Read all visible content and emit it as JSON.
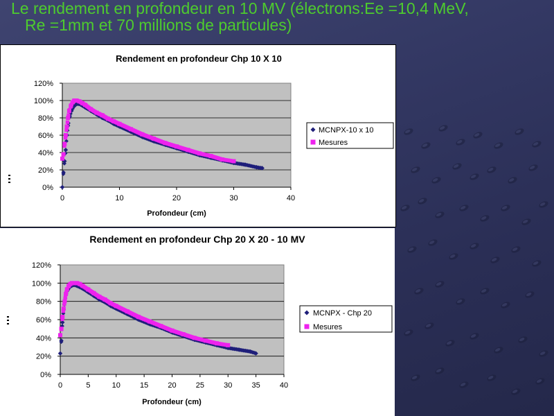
{
  "slide": {
    "title_line1": "Le rendement en profondeur  en 10 MV (électrons:Ee =10,4 MeV,",
    "title_line2": "Re =1mm et 70 millions de particules)",
    "accent_color": "#4ecb2e"
  },
  "chart_data": [
    {
      "type": "scatter",
      "title": "Rendement en profondeur Chp 10 X 10",
      "xlabel": "Profondeur (cm)",
      "ylabel": "",
      "xlim": [
        0,
        40
      ],
      "ylim": [
        0,
        120
      ],
      "xticks": [
        0,
        10,
        20,
        30,
        40
      ],
      "yticks": [
        0,
        20,
        40,
        60,
        80,
        100,
        120
      ],
      "xtick_labels": [
        "0",
        "10",
        "20",
        "30",
        "40"
      ],
      "ytick_labels": [
        "0%",
        "20%",
        "40%",
        "60%",
        "80%",
        "100%",
        "120%"
      ],
      "grid": "horizontal",
      "legend": "right",
      "plot_bg": "#c0c0c0",
      "series": [
        {
          "name": "MCNPX-10 x  10",
          "color": "#1f1f7a",
          "marker": "diamond",
          "x": [
            0,
            0.2,
            0.4,
            0.6,
            0.8,
            1.0,
            1.3,
            1.6,
            2.0,
            2.5,
            3.0,
            4,
            5,
            6,
            7,
            8,
            9,
            10,
            12,
            14,
            16,
            18,
            20,
            22,
            24,
            26,
            28,
            30,
            32,
            34,
            35
          ],
          "y": [
            0,
            17,
            30,
            43,
            60,
            71,
            82,
            88,
            93,
            96,
            96,
            92,
            88,
            84,
            80,
            77,
            73,
            70,
            64,
            58,
            53,
            49,
            45,
            41,
            37,
            34,
            31,
            28,
            26,
            23,
            22
          ]
        },
        {
          "name": "Mesures",
          "color": "#ee22ee",
          "marker": "square",
          "x": [
            0,
            0.2,
            0.4,
            0.6,
            0.8,
            1.0,
            1.2,
            1.5,
            1.8,
            2.1,
            2.5,
            3.0,
            3.5,
            4,
            5,
            6,
            7,
            8,
            9,
            10,
            12,
            14,
            16,
            18,
            20,
            22,
            24,
            26,
            28,
            30
          ],
          "y": [
            33,
            38,
            50,
            60,
            70,
            80,
            88,
            94,
            98,
            100,
            100,
            99,
            97,
            95,
            90,
            86,
            83,
            79,
            76,
            73,
            67,
            61,
            56,
            51,
            47,
            43,
            39,
            36,
            32,
            30
          ]
        }
      ]
    },
    {
      "type": "scatter",
      "title": "Rendement en profondeur Chp 20 X 20 - 10 MV",
      "xlabel": "Profondeur (cm)",
      "ylabel": "",
      "xlim": [
        0,
        40
      ],
      "ylim": [
        0,
        120
      ],
      "xticks": [
        0,
        5,
        10,
        15,
        20,
        25,
        30,
        35,
        40
      ],
      "yticks": [
        0,
        20,
        40,
        60,
        80,
        100,
        120
      ],
      "xtick_labels": [
        "0",
        "5",
        "10",
        "15",
        "20",
        "25",
        "30",
        "35",
        "40"
      ],
      "ytick_labels": [
        "0%",
        "20%",
        "40%",
        "60%",
        "80%",
        "100%",
        "120%"
      ],
      "grid": "horizontal",
      "legend": "right",
      "plot_bg": "#c0c0c0",
      "series": [
        {
          "name": "MCNPX - Chp 20",
          "color": "#1f1f7a",
          "marker": "diamond",
          "x": [
            0,
            0.2,
            0.4,
            0.6,
            0.8,
            1.0,
            1.3,
            1.6,
            2.0,
            2.5,
            3.0,
            4,
            5,
            6,
            7,
            8,
            9,
            10,
            12,
            14,
            16,
            18,
            20,
            22,
            24,
            26,
            28,
            30,
            32,
            34,
            35
          ],
          "y": [
            23,
            37,
            57,
            71,
            80,
            87,
            92,
            95,
            97,
            98,
            97,
            94,
            90,
            86,
            82,
            79,
            75,
            72,
            66,
            60,
            55,
            51,
            46,
            42,
            38,
            35,
            32,
            29,
            27,
            25,
            23
          ]
        },
        {
          "name": "Mesures",
          "color": "#ee22ee",
          "marker": "square",
          "x": [
            0,
            0.2,
            0.4,
            0.6,
            0.8,
            1.0,
            1.2,
            1.5,
            1.8,
            2.1,
            2.5,
            3.0,
            3.5,
            4,
            5,
            6,
            7,
            8,
            9,
            10,
            12,
            14,
            16,
            18,
            20,
            22,
            24,
            26,
            28,
            30
          ],
          "y": [
            43,
            50,
            63,
            72,
            80,
            88,
            93,
            97,
            99,
            100,
            100,
            100,
            99,
            97,
            93,
            89,
            85,
            82,
            78,
            75,
            69,
            63,
            58,
            53,
            48,
            44,
            40,
            37,
            34,
            32
          ]
        }
      ]
    }
  ]
}
